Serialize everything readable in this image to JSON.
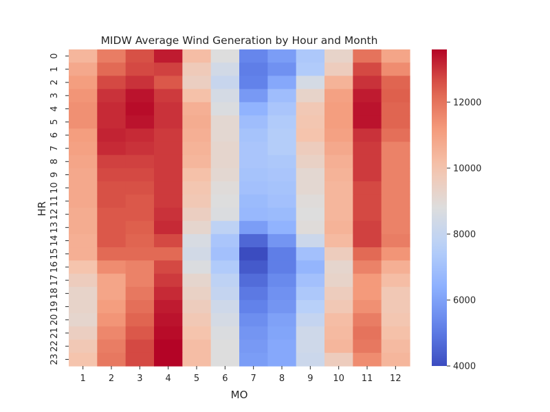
{
  "chart_data": {
    "type": "heatmap",
    "title": "MIDW Average Wind Generation by Hour and Month",
    "xlabel": "MO",
    "ylabel": "HR",
    "x": [
      "1",
      "2",
      "3",
      "4",
      "5",
      "6",
      "7",
      "8",
      "9",
      "10",
      "11",
      "12"
    ],
    "y": [
      "0",
      "1",
      "2",
      "3",
      "4",
      "5",
      "6",
      "7",
      "8",
      "9",
      "10",
      "11",
      "12",
      "13",
      "14",
      "15",
      "16",
      "17",
      "18",
      "19",
      "20",
      "21",
      "22",
      "23"
    ],
    "colormap": "coolwarm",
    "vmin": 4000,
    "vmax": 13600,
    "colorbar_ticks": [
      4000,
      6000,
      8000,
      10000,
      12000
    ],
    "values": [
      [
        10400,
        11800,
        12600,
        13300,
        10200,
        8800,
        5300,
        5900,
        7300,
        9300,
        12000,
        10900
      ],
      [
        10800,
        12200,
        12700,
        12800,
        9700,
        8400,
        5100,
        5600,
        7400,
        9600,
        12700,
        11500
      ],
      [
        11100,
        12700,
        13000,
        12500,
        9500,
        8100,
        5200,
        6200,
        8500,
        10500,
        13000,
        12300
      ],
      [
        11300,
        13000,
        13400,
        12900,
        10100,
        8500,
        5800,
        6900,
        9300,
        11000,
        13300,
        12400
      ],
      [
        11400,
        13100,
        13500,
        13000,
        10600,
        8700,
        6500,
        7200,
        9800,
        11100,
        13400,
        12300
      ],
      [
        11400,
        13100,
        13400,
        13000,
        10700,
        9100,
        6900,
        7400,
        9900,
        11100,
        13400,
        12300
      ],
      [
        11100,
        13200,
        13100,
        12900,
        10600,
        9100,
        7100,
        7500,
        10000,
        11000,
        13000,
        12100
      ],
      [
        11000,
        13100,
        13000,
        12900,
        10500,
        9200,
        7200,
        7500,
        9600,
        10800,
        12900,
        11700
      ],
      [
        10900,
        12800,
        12800,
        12900,
        10400,
        9200,
        7200,
        7300,
        9400,
        10600,
        12900,
        11700
      ],
      [
        10800,
        12700,
        12700,
        12900,
        10100,
        9100,
        7100,
        7200,
        9100,
        10500,
        12900,
        11700
      ],
      [
        10800,
        12600,
        12600,
        12900,
        9900,
        8900,
        7000,
        7100,
        9100,
        10400,
        12700,
        11700
      ],
      [
        10800,
        12600,
        12500,
        12900,
        9800,
        8800,
        6800,
        7000,
        8900,
        10400,
        12700,
        11700
      ],
      [
        10700,
        12500,
        12500,
        13000,
        9500,
        8700,
        6700,
        6800,
        8800,
        10400,
        12700,
        11700
      ],
      [
        10700,
        12500,
        12400,
        13100,
        9200,
        7800,
        5900,
        6500,
        8900,
        10500,
        12800,
        11700
      ],
      [
        10600,
        12500,
        12300,
        12700,
        8600,
        7200,
        4600,
        5700,
        8200,
        10300,
        12800,
        11800
      ],
      [
        10600,
        12200,
        12200,
        12200,
        8400,
        7000,
        4000,
        5100,
        7000,
        9600,
        12200,
        11300
      ],
      [
        10000,
        11500,
        11700,
        12700,
        8700,
        7400,
        4300,
        5100,
        6600,
        9200,
        11700,
        10600
      ],
      [
        9600,
        10900,
        11700,
        12900,
        9200,
        7800,
        4700,
        5400,
        7000,
        9300,
        11200,
        10200
      ],
      [
        9300,
        10900,
        11900,
        13100,
        9400,
        8000,
        5000,
        5600,
        7300,
        9600,
        11200,
        9800
      ],
      [
        9300,
        11100,
        12100,
        13300,
        9600,
        8300,
        5200,
        5700,
        7600,
        9800,
        11400,
        9800
      ],
      [
        9200,
        11300,
        12300,
        13400,
        9800,
        8500,
        5500,
        6000,
        8000,
        10200,
        11800,
        9900
      ],
      [
        9500,
        11600,
        12500,
        13500,
        10000,
        8700,
        5700,
        6100,
        8300,
        10300,
        12000,
        10100
      ],
      [
        9800,
        11800,
        12700,
        13600,
        10200,
        8800,
        5800,
        6200,
        8300,
        10400,
        11900,
        10300
      ],
      [
        10000,
        11900,
        12700,
        13600,
        10200,
        8800,
        5900,
        6200,
        8200,
        9600,
        11500,
        10400
      ]
    ]
  }
}
